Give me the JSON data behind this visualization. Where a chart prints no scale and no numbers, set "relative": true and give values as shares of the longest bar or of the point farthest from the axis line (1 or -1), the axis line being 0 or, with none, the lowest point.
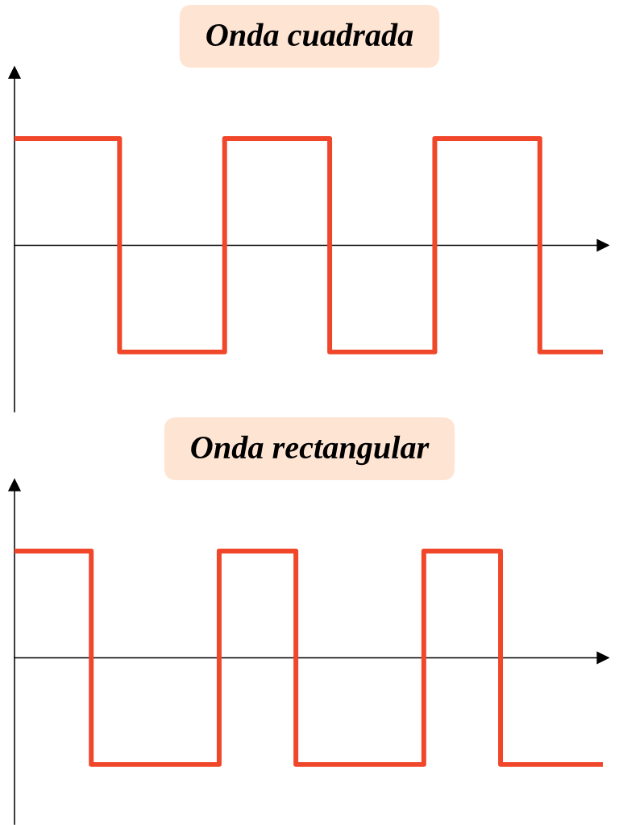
{
  "chart_data": [
    {
      "type": "step",
      "title": "Onda cuadrada",
      "relative": true,
      "categories": [
        null,
        null,
        null,
        null,
        null,
        null,
        null,
        null,
        null,
        null,
        null,
        null,
        null,
        null,
        null,
        null,
        null,
        null,
        null,
        null,
        null,
        null,
        null,
        null,
        null,
        null,
        null,
        null,
        null
      ],
      "series": [
        {
          "color": "#f0462a",
          "values": [
            1,
            1,
            1,
            1,
            1,
            -1,
            -1,
            -1,
            -1,
            -1,
            1,
            1,
            1,
            1,
            1,
            -1,
            -1,
            -1,
            -1,
            -1,
            1,
            1,
            1,
            1,
            1,
            -1,
            -1,
            -1,
            -1
          ]
        }
      ]
    },
    {
      "type": "step",
      "title": "Onda rectangular",
      "relative": true,
      "categories": [
        null,
        null,
        null,
        null,
        null,
        null,
        null,
        null,
        null,
        null,
        null,
        null,
        null,
        null,
        null,
        null,
        null,
        null,
        null,
        null,
        null,
        null,
        null,
        null
      ],
      "series": [
        {
          "color": "#f0462a",
          "values": [
            1,
            1,
            1,
            -1,
            -1,
            -1,
            -1,
            -1,
            1,
            1,
            1,
            -1,
            -1,
            -1,
            -1,
            -1,
            1,
            1,
            1,
            -1,
            -1,
            -1,
            -1,
            -1
          ]
        }
      ]
    }
  ]
}
